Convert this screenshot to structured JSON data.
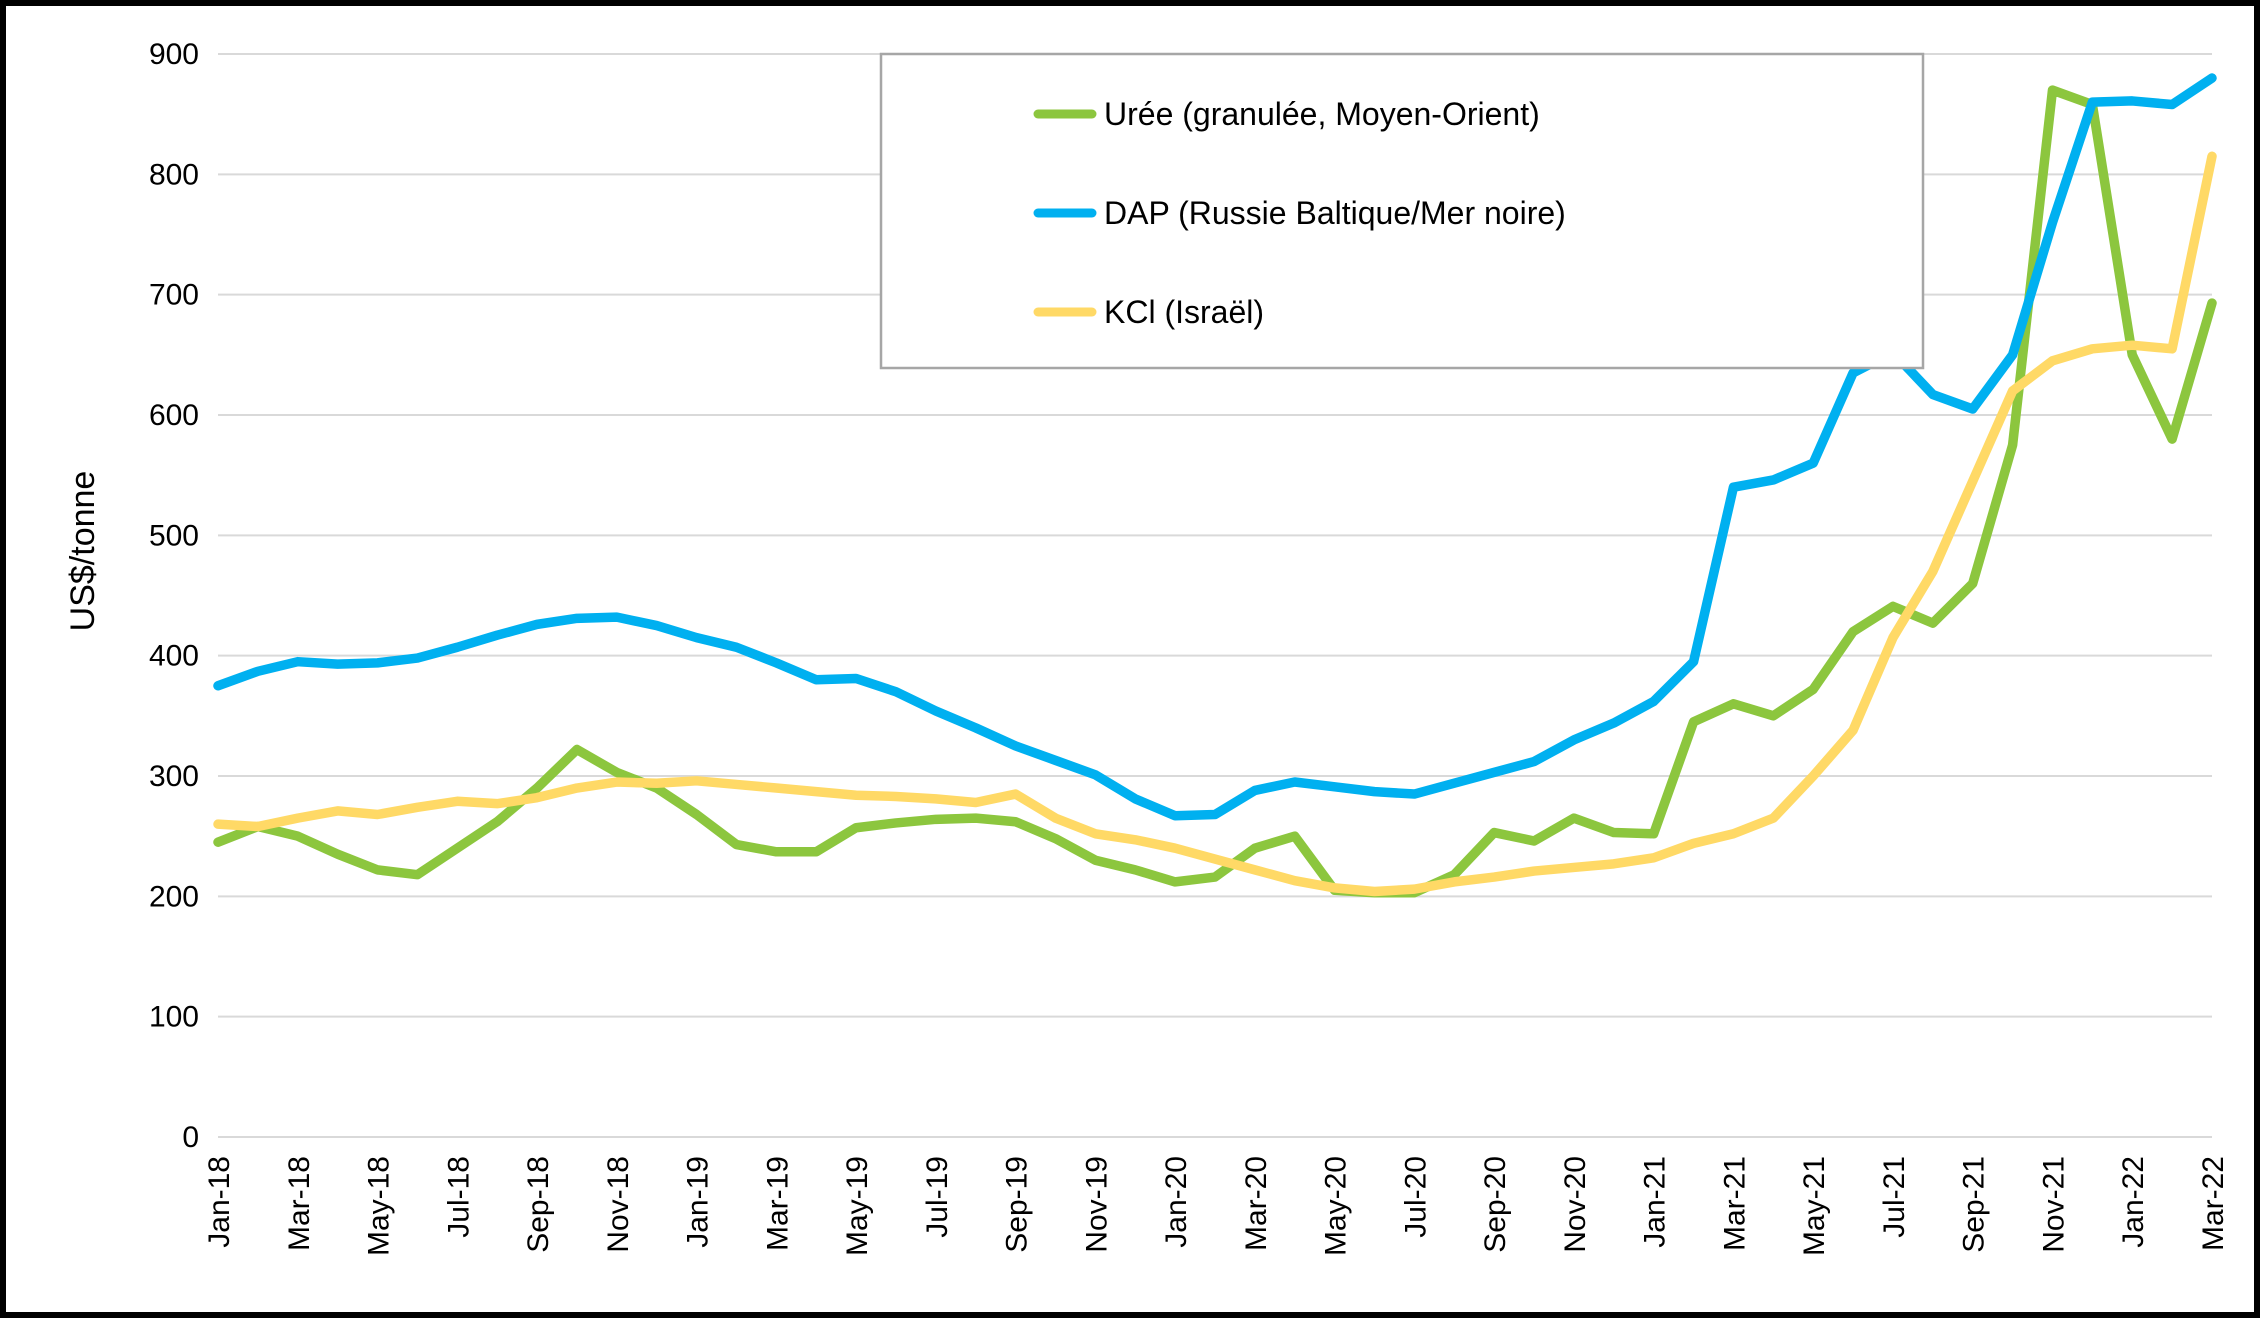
{
  "chart_data": {
    "type": "line",
    "title": "",
    "xlabel": "",
    "ylabel": "US$/tonne",
    "ylim": [
      0,
      900
    ],
    "y_ticks": [
      0,
      100,
      200,
      300,
      400,
      500,
      600,
      700,
      800,
      900
    ],
    "grid": "horizontal",
    "legend_position": "top-center-inside",
    "x_tick_every": 2,
    "x": [
      "Jan-18",
      "Feb-18",
      "Mar-18",
      "Apr-18",
      "May-18",
      "Jun-18",
      "Jul-18",
      "Aug-18",
      "Sep-18",
      "Oct-18",
      "Nov-18",
      "Dec-18",
      "Jan-19",
      "Feb-19",
      "Mar-19",
      "Apr-19",
      "May-19",
      "Jun-19",
      "Jul-19",
      "Aug-19",
      "Sep-19",
      "Oct-19",
      "Nov-19",
      "Dec-19",
      "Jan-20",
      "Feb-20",
      "Mar-20",
      "Apr-20",
      "May-20",
      "Jun-20",
      "Jul-20",
      "Aug-20",
      "Sep-20",
      "Oct-20",
      "Nov-20",
      "Dec-20",
      "Jan-21",
      "Feb-21",
      "Mar-21",
      "Apr-21",
      "May-21",
      "Jun-21",
      "Jul-21",
      "Aug-21",
      "Sep-21",
      "Oct-21",
      "Nov-21",
      "Dec-21",
      "Jan-22",
      "Feb-22",
      "Mar-22"
    ],
    "series": [
      {
        "name": "Urée (granulée, Moyen-Orient)",
        "color": "#8CC63E",
        "values": [
          245,
          258,
          250,
          235,
          222,
          218,
          240,
          262,
          290,
          322,
          303,
          290,
          268,
          243,
          237,
          237,
          257,
          261,
          264,
          265,
          262,
          248,
          230,
          222,
          212,
          216,
          240,
          250,
          205,
          203,
          203,
          218,
          253,
          246,
          265,
          253,
          252,
          345,
          360,
          350,
          372,
          420,
          441,
          427,
          460,
          575,
          870,
          858,
          650,
          580,
          693
        ]
      },
      {
        "name": "DAP (Russie Baltique/Mer noire)",
        "color": "#00B0F0",
        "values": [
          375,
          387,
          395,
          393,
          394,
          398,
          407,
          417,
          426,
          431,
          432,
          425,
          415,
          407,
          394,
          380,
          381,
          370,
          354,
          340,
          325,
          313,
          301,
          281,
          267,
          268,
          288,
          295,
          291,
          287,
          285,
          294,
          303,
          312,
          330,
          344,
          362,
          395,
          540,
          546,
          560,
          635,
          652,
          617,
          605,
          650,
          760,
          860,
          861,
          858,
          880
        ]
      },
      {
        "name": "KCl (Israël)",
        "color": "#FFD966",
        "values": [
          260,
          258,
          265,
          271,
          268,
          274,
          279,
          277,
          282,
          290,
          295,
          294,
          296,
          293,
          290,
          287,
          284,
          283,
          281,
          278,
          285,
          265,
          252,
          247,
          240,
          231,
          222,
          213,
          207,
          204,
          206,
          212,
          216,
          221,
          224,
          227,
          232,
          244,
          252,
          265,
          300,
          338,
          415,
          470,
          545,
          620,
          645,
          655,
          658,
          655,
          815
        ]
      }
    ]
  },
  "colors": {
    "background": "#FFFFFF",
    "frame_border": "#000000",
    "gridline": "#D9D9D9",
    "legend_border": "#A6A6A6",
    "text": "#000000"
  }
}
